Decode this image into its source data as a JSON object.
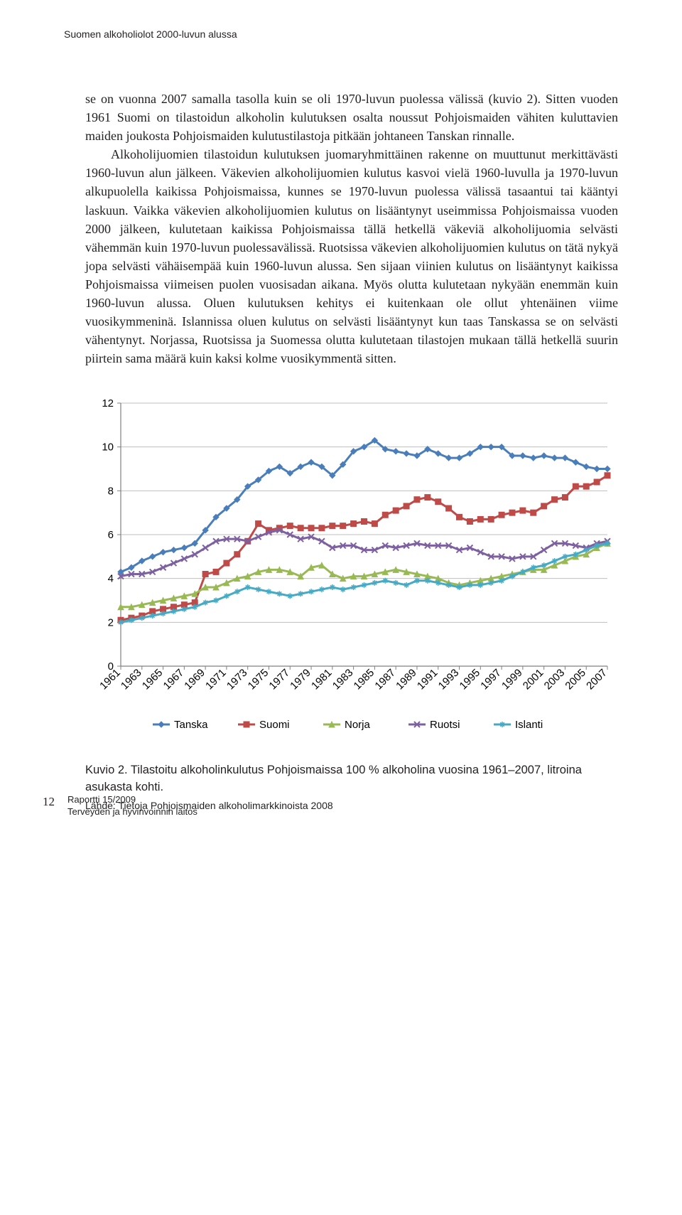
{
  "running_head": "Suomen alkoholiolot 2000-luvun alussa",
  "body": {
    "p1": "se on vuonna 2007 samalla tasolla kuin se oli 1970-luvun puolessa välissä (kuvio 2). Sitten vuoden 1961 Suomi on tilastoidun alkoholin kulutuksen osalta noussut Pohjoismaiden vähiten kuluttavien maiden joukosta Pohjoismaiden kulutustilastoja pitkään johtaneen Tanskan rinnalle.",
    "p2": "Alkoholijuomien tilastoidun kulutuksen juomaryhmittäinen rakenne on muuttunut merkittävästi 1960-luvun alun jälkeen. Väkevien alkoholijuomien kulutus kasvoi vielä 1960-luvulla ja 1970-luvun alkupuolella kaikissa Pohjoismaissa, kunnes se 1970-luvun puolessa välissä tasaantui tai kääntyi laskuun. Vaikka väkevien alkoholijuomien kulutus on lisääntynyt useimmissa Pohjoismaissa vuoden 2000 jälkeen, kulutetaan kaikissa Pohjoismaissa tällä hetkellä väkeviä alkoholijuomia selvästi vähemmän kuin 1970-luvun puolessavälissä. Ruotsissa väkevien alkoholijuomien kulutus on tätä nykyä jopa selvästi vähäisempää kuin 1960-luvun alussa. Sen sijaan viinien kulutus on lisääntynyt kaikissa Pohjoismaissa viimeisen puolen vuosisadan aikana. Myös olutta kulutetaan nykyään enemmän kuin 1960-luvun alussa. Oluen kulutuksen kehitys ei kuitenkaan ole ollut yhtenäinen viime vuosikymmeninä. Islannissa oluen kulutus on selvästi lisääntynyt kun taas Tanskassa se on selvästi vähentynyt. Norjassa, Ruotsissa ja Suomessa olutta kulutetaan tilastojen mukaan tällä hetkellä suurin piirtein sama määrä kuin kaksi kolme vuosikymmentä sitten."
  },
  "chart": {
    "type": "line",
    "background_color": "#ffffff",
    "grid_color": "#bfbfbf",
    "axis_color": "#808080",
    "tick_fontsize": 15,
    "legend_fontsize": 15,
    "line_width": 3,
    "marker_size": 4,
    "ylim": [
      0,
      12
    ],
    "ytick_step": 2,
    "yticks": [
      0,
      2,
      4,
      6,
      8,
      10,
      12
    ],
    "xticks": [
      1961,
      1963,
      1965,
      1967,
      1969,
      1971,
      1973,
      1975,
      1977,
      1979,
      1981,
      1983,
      1985,
      1987,
      1989,
      1991,
      1993,
      1995,
      1997,
      1999,
      2001,
      2003,
      2005,
      2007
    ],
    "years": [
      1961,
      1962,
      1963,
      1964,
      1965,
      1966,
      1967,
      1968,
      1969,
      1970,
      1971,
      1972,
      1973,
      1974,
      1975,
      1976,
      1977,
      1978,
      1979,
      1980,
      1981,
      1982,
      1983,
      1984,
      1985,
      1986,
      1987,
      1988,
      1989,
      1990,
      1991,
      1992,
      1993,
      1994,
      1995,
      1996,
      1997,
      1998,
      1999,
      2000,
      2001,
      2002,
      2003,
      2004,
      2005,
      2006,
      2007
    ],
    "series": [
      {
        "name": "Tanska",
        "color": "#4a7ebb",
        "marker": "diamond",
        "values": [
          4.3,
          4.5,
          4.8,
          5.0,
          5.2,
          5.3,
          5.4,
          5.6,
          6.2,
          6.8,
          7.2,
          7.6,
          8.2,
          8.5,
          8.9,
          9.1,
          8.8,
          9.1,
          9.3,
          9.1,
          8.7,
          9.2,
          9.8,
          10.0,
          10.3,
          9.9,
          9.8,
          9.7,
          9.6,
          9.9,
          9.7,
          9.5,
          9.5,
          9.7,
          10.0,
          10.0,
          10.0,
          9.6,
          9.6,
          9.5,
          9.6,
          9.5,
          9.5,
          9.3,
          9.1,
          9.0,
          9.0
        ]
      },
      {
        "name": "Suomi",
        "color": "#be4b48",
        "marker": "square",
        "values": [
          2.1,
          2.2,
          2.3,
          2.5,
          2.6,
          2.7,
          2.8,
          2.9,
          4.2,
          4.3,
          4.7,
          5.1,
          5.7,
          6.5,
          6.2,
          6.3,
          6.4,
          6.3,
          6.3,
          6.3,
          6.4,
          6.4,
          6.5,
          6.6,
          6.5,
          6.9,
          7.1,
          7.3,
          7.6,
          7.7,
          7.5,
          7.2,
          6.8,
          6.6,
          6.7,
          6.7,
          6.9,
          7.0,
          7.1,
          7.0,
          7.3,
          7.6,
          7.7,
          8.2,
          8.2,
          8.4,
          8.7
        ]
      },
      {
        "name": "Norja",
        "color": "#98b954",
        "marker": "triangle",
        "values": [
          2.7,
          2.7,
          2.8,
          2.9,
          3.0,
          3.1,
          3.2,
          3.3,
          3.6,
          3.6,
          3.8,
          4.0,
          4.1,
          4.3,
          4.4,
          4.4,
          4.3,
          4.1,
          4.5,
          4.6,
          4.2,
          4.0,
          4.1,
          4.1,
          4.2,
          4.3,
          4.4,
          4.3,
          4.2,
          4.1,
          4.0,
          3.8,
          3.7,
          3.8,
          3.9,
          4.0,
          4.1,
          4.2,
          4.3,
          4.4,
          4.4,
          4.6,
          4.8,
          5.0,
          5.1,
          5.4,
          5.6
        ]
      },
      {
        "name": "Ruotsi",
        "color": "#7d60a0",
        "marker": "x",
        "values": [
          4.1,
          4.2,
          4.2,
          4.3,
          4.5,
          4.7,
          4.9,
          5.1,
          5.4,
          5.7,
          5.8,
          5.8,
          5.7,
          5.9,
          6.1,
          6.2,
          6.0,
          5.8,
          5.9,
          5.7,
          5.4,
          5.5,
          5.5,
          5.3,
          5.3,
          5.5,
          5.4,
          5.5,
          5.6,
          5.5,
          5.5,
          5.5,
          5.3,
          5.4,
          5.2,
          5.0,
          5.0,
          4.9,
          5.0,
          5.0,
          5.3,
          5.6,
          5.6,
          5.5,
          5.4,
          5.6,
          5.7
        ]
      },
      {
        "name": "Islanti",
        "color": "#46aac5",
        "marker": "star",
        "values": [
          2.0,
          2.1,
          2.2,
          2.3,
          2.4,
          2.5,
          2.6,
          2.7,
          2.9,
          3.0,
          3.2,
          3.4,
          3.6,
          3.5,
          3.4,
          3.3,
          3.2,
          3.3,
          3.4,
          3.5,
          3.6,
          3.5,
          3.6,
          3.7,
          3.8,
          3.9,
          3.8,
          3.7,
          3.9,
          3.9,
          3.8,
          3.7,
          3.6,
          3.7,
          3.7,
          3.8,
          3.9,
          4.1,
          4.3,
          4.5,
          4.6,
          4.8,
          5.0,
          5.1,
          5.3,
          5.5,
          5.6
        ]
      }
    ],
    "legend": [
      "Tanska",
      "Suomi",
      "Norja",
      "Ruotsi",
      "Islanti"
    ]
  },
  "caption": "Kuvio 2. Tilastoitu alkoholinkulutus Pohjoismaissa 100 % alkoholina vuosina 1961–2007, litroina asukasta kohti.",
  "source": "Lähde: Tietoja Pohjoismaiden alkoholimarkkinoista 2008",
  "footer": {
    "page": "12",
    "line1": "Raportti 15/2009",
    "line2": "Terveyden ja hyvinvoinnin laitos"
  }
}
